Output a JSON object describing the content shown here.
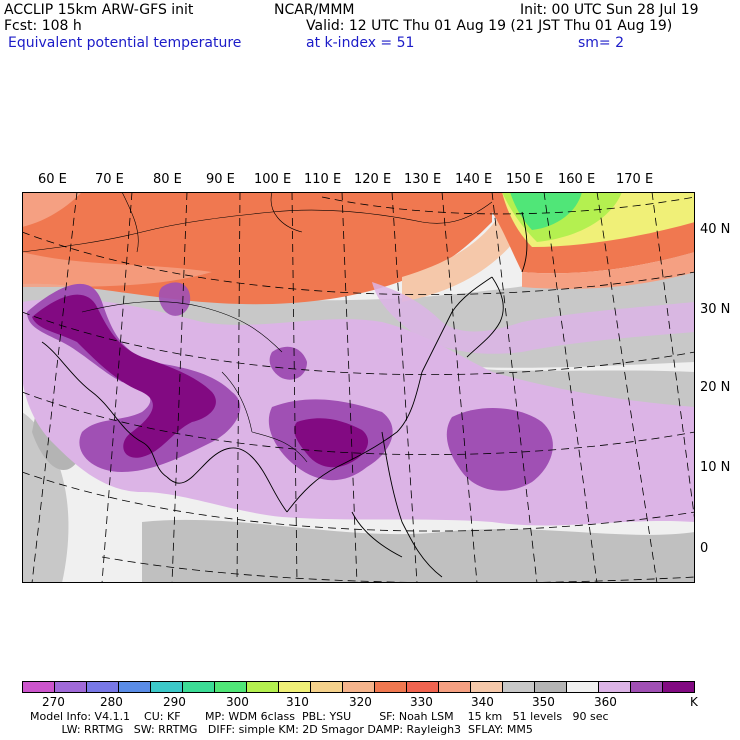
{
  "header": {
    "model": "ACCLIP 15km ARW-GFS init",
    "org": "NCAR/MMM",
    "init": "Init: 00 UTC Sun 28 Jul 19",
    "fcst": "Fcst:  108 h",
    "valid": "Valid: 12 UTC Thu 01 Aug 19 (21 JST Thu 01 Aug 19)",
    "field": "Equivalent potential temperature",
    "level": "at k-index =  51",
    "smooth": "sm= 2"
  },
  "map": {
    "lon_labels": [
      "60 E",
      "70 E",
      "80 E",
      "90 E",
      "100 E",
      "110 E",
      "120 E",
      "130 E",
      "140 E",
      "150 E",
      "160 E",
      "170 E"
    ],
    "lat_labels": [
      "40 N",
      "30 N",
      "20 N",
      "10 N",
      "0"
    ],
    "colors": {
      "background": "#f0f0f0",
      "grey": "#c8c8c8",
      "grey_dark": "#b4b4b4",
      "light_purple": "#dcb4e6",
      "purple": "#a050b4",
      "dark_purple": "#820a82",
      "orange": "#f07850",
      "orange_light": "#f5a082",
      "peach": "#f5c8aa",
      "green": "#50e678",
      "yellow_green": "#b4f050",
      "yellow": "#f0f078"
    }
  },
  "legend": {
    "colors": [
      "#cc55cc",
      "#a06ad8",
      "#7878e6",
      "#5a8ce6",
      "#3cc8c8",
      "#3cdc96",
      "#50e678",
      "#b4f050",
      "#f0f078",
      "#f5d28c",
      "#f5b48c",
      "#f07850",
      "#f06450",
      "#f5a082",
      "#f5c8aa",
      "#c8c8c8",
      "#b4b4b4",
      "#f0f0f0",
      "#dcb4e6",
      "#a050b4",
      "#820a82"
    ],
    "ticks": [
      "270",
      "280",
      "290",
      "300",
      "310",
      "320",
      "330",
      "340",
      "350",
      "360"
    ],
    "unit": "K"
  },
  "footer": {
    "line1": "Model Info: V4.1.1    CU: KF       MP: WDM 6class  PBL: YSU        SF: Noah LSM    15 km   51 levels   90 sec",
    "line2": "         LW: RRTMG   SW: RRTMG   DIFF: simple KM: 2D Smagor DAMP: Rayleigh3  SFLAY: MM5"
  }
}
